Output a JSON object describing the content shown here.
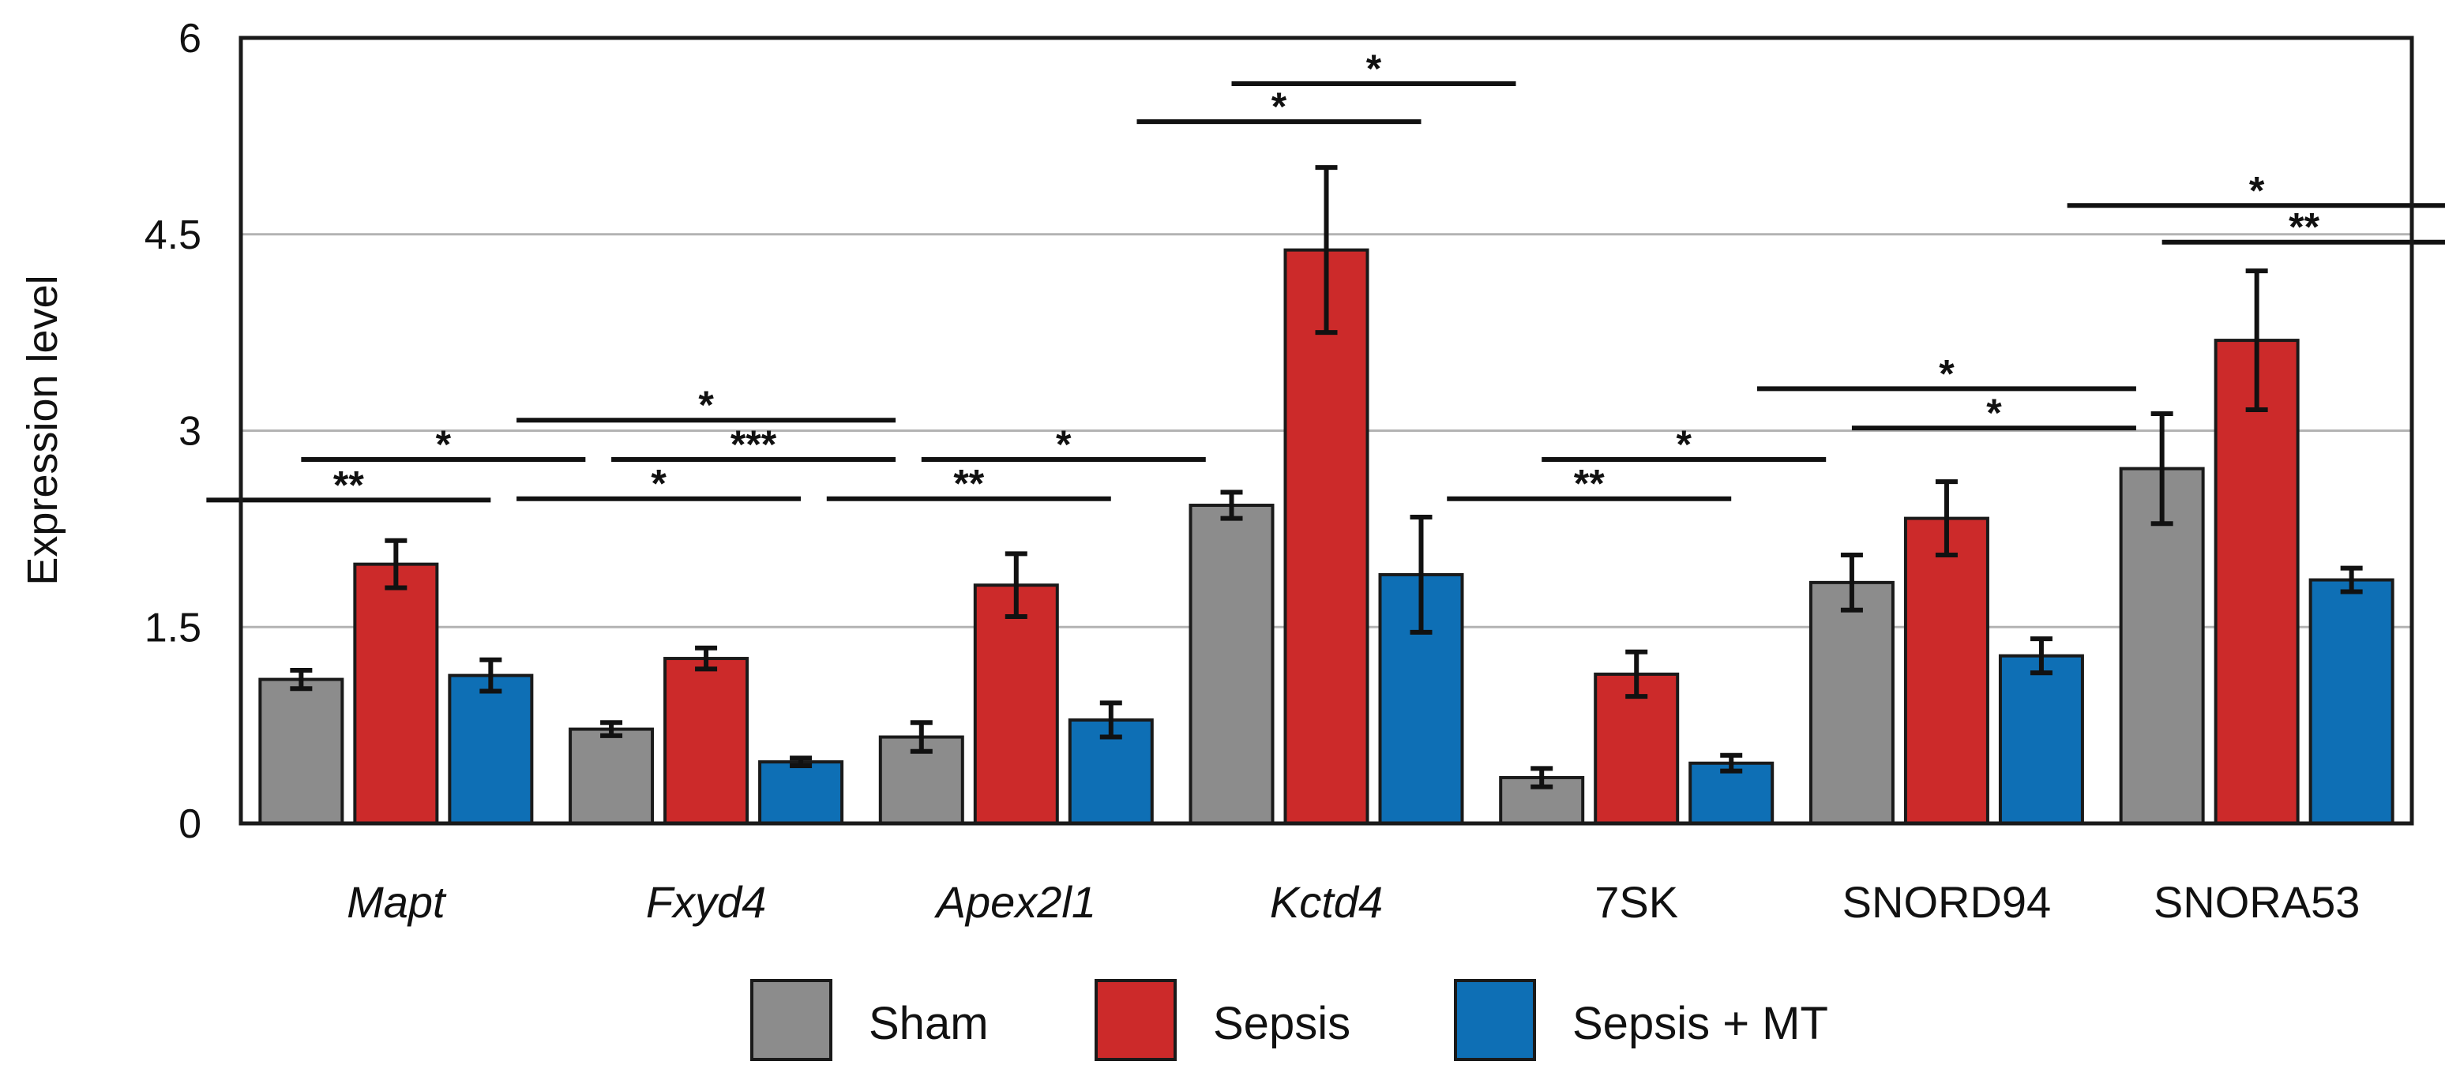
{
  "chart_data": {
    "type": "bar",
    "ylabel": "Expression level",
    "xlabel": "",
    "title": "",
    "ylim": [
      0,
      6
    ],
    "yticks": [
      "0",
      "1.5",
      "3",
      "4.5",
      "6"
    ],
    "ytick_values": [
      0,
      1.5,
      3,
      4.5,
      6
    ],
    "grid": true,
    "legend_position": "bottom-center",
    "categories": [
      "Mapt",
      "Fxyd4",
      "Apex2l1",
      "Kctd4",
      "7SK",
      "SNORD94",
      "SNORA53"
    ],
    "category_italic": [
      true,
      true,
      true,
      true,
      false,
      false,
      false
    ],
    "series": [
      {
        "name": "Sham",
        "color": "#8c8c8c",
        "values": [
          1.1,
          0.72,
          0.66,
          2.43,
          0.35,
          1.84,
          2.71
        ],
        "errors": [
          0.07,
          0.05,
          0.11,
          0.1,
          0.07,
          0.21,
          0.42
        ]
      },
      {
        "name": "Sepsis",
        "color": "#cc2a2a",
        "values": [
          1.98,
          1.26,
          1.82,
          4.38,
          1.14,
          2.33,
          3.69
        ],
        "errors": [
          0.18,
          0.08,
          0.24,
          0.63,
          0.17,
          0.28,
          0.53
        ]
      },
      {
        "name": "Sepsis + MT",
        "color": "#0e6fb5",
        "values": [
          1.13,
          0.47,
          0.79,
          1.9,
          0.46,
          1.28,
          1.86
        ],
        "errors": [
          0.12,
          0.03,
          0.13,
          0.44,
          0.06,
          0.13,
          0.09
        ]
      }
    ],
    "significance": [
      {
        "category": 0,
        "from": 0,
        "to": 1,
        "y": 2.47,
        "label": "**"
      },
      {
        "category": 0,
        "from": 1,
        "to": 2,
        "y": 2.78,
        "label": "*"
      },
      {
        "category": 1,
        "from": 0,
        "to": 1,
        "y": 2.48,
        "label": "*"
      },
      {
        "category": 1,
        "from": 1,
        "to": 2,
        "y": 2.78,
        "label": "***"
      },
      {
        "category": 1,
        "from": 0,
        "to": 2,
        "y": 3.08,
        "label": "*"
      },
      {
        "category": 2,
        "from": 0,
        "to": 1,
        "y": 2.48,
        "label": "**"
      },
      {
        "category": 2,
        "from": 1,
        "to": 2,
        "y": 2.78,
        "label": "*"
      },
      {
        "category": 3,
        "from": 0,
        "to": 1,
        "y": 5.36,
        "label": "*"
      },
      {
        "category": 3,
        "from": 1,
        "to": 2,
        "y": 5.65,
        "label": "*"
      },
      {
        "category": 4,
        "from": 0,
        "to": 1,
        "y": 2.48,
        "label": "**"
      },
      {
        "category": 4,
        "from": 1,
        "to": 2,
        "y": 2.78,
        "label": "*"
      },
      {
        "category": 5,
        "from": 0,
        "to": 2,
        "y": 3.32,
        "label": "*"
      },
      {
        "category": 5,
        "from": 1,
        "to": 2,
        "y": 3.02,
        "label": "*"
      },
      {
        "category": 6,
        "from": 0,
        "to": 2,
        "y": 4.72,
        "label": "*"
      },
      {
        "category": 6,
        "from": 1,
        "to": 2,
        "y": 4.44,
        "label": "**"
      }
    ]
  }
}
